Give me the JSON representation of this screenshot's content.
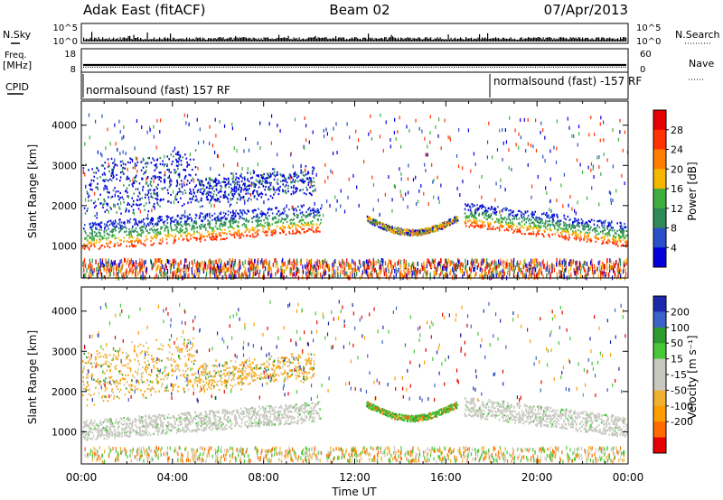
{
  "header": {
    "title": "Adak East (fitACF)",
    "beam": "Beam 02",
    "date": "07/Apr/2013"
  },
  "nsky_panel": {
    "left_label": "N.Sky",
    "right_label": "N.Search",
    "left_ticks": [
      "10^5",
      "10^0"
    ],
    "right_ticks": [
      "10^5",
      "10^0"
    ]
  },
  "freq_panel": {
    "left_label_top": "Freq.",
    "left_label_unit": "[MHz]",
    "right_label": "Nave",
    "left_ticks": [
      "18",
      "8"
    ],
    "right_ticks": [
      "60",
      "0"
    ]
  },
  "cpid_panel": {
    "label": "CPID",
    "modes": [
      {
        "label": "normalsound (fast) 157 RF",
        "start_hour": 0
      },
      {
        "label": "normalsound (fast) -157 RF",
        "start_hour": 18
      }
    ]
  },
  "colors": {
    "power_scale": [
      "#0000dd",
      "#2a4fc8",
      "#2e8b57",
      "#3fae3f",
      "#f5b700",
      "#ff7f00",
      "#ff3300",
      "#e60000"
    ],
    "velocity_scale": [
      "#e60000",
      "#ff6a00",
      "#ff9d00",
      "#f0b030",
      "#c8c8c0",
      "#c8c8c0",
      "#48c838",
      "#2e9b2e",
      "#3a62c8",
      "#1a2aaa"
    ]
  },
  "chart_data": [
    {
      "type": "heatmap",
      "name": "power",
      "ylabel": "Slant Range [km]",
      "yticks": [
        "1000",
        "2000",
        "3000",
        "4000"
      ],
      "ylim": [
        200,
        4600
      ],
      "xlim": [
        0,
        24
      ],
      "colorbar_label": "Power [dB]",
      "colorbar_ticks": [
        "4",
        "8",
        "12",
        "16",
        "20",
        "24",
        "28"
      ],
      "colorbar_range": [
        0,
        32
      ]
    },
    {
      "type": "heatmap",
      "name": "velocity",
      "ylabel": "Slant Range [km]",
      "yticks": [
        "1000",
        "2000",
        "3000",
        "4000"
      ],
      "ylim": [
        200,
        4600
      ],
      "xlim": [
        0,
        24
      ],
      "colorbar_label": "Velocity [m s⁻¹]",
      "colorbar_ticks": [
        "200",
        "100",
        "50",
        "15",
        "-15",
        "-50",
        "-100",
        "-200"
      ]
    }
  ],
  "xaxis": {
    "label": "Time UT",
    "ticks": [
      "00:00",
      "04:00",
      "08:00",
      "12:00",
      "16:00",
      "20:00",
      "00:00"
    ]
  }
}
